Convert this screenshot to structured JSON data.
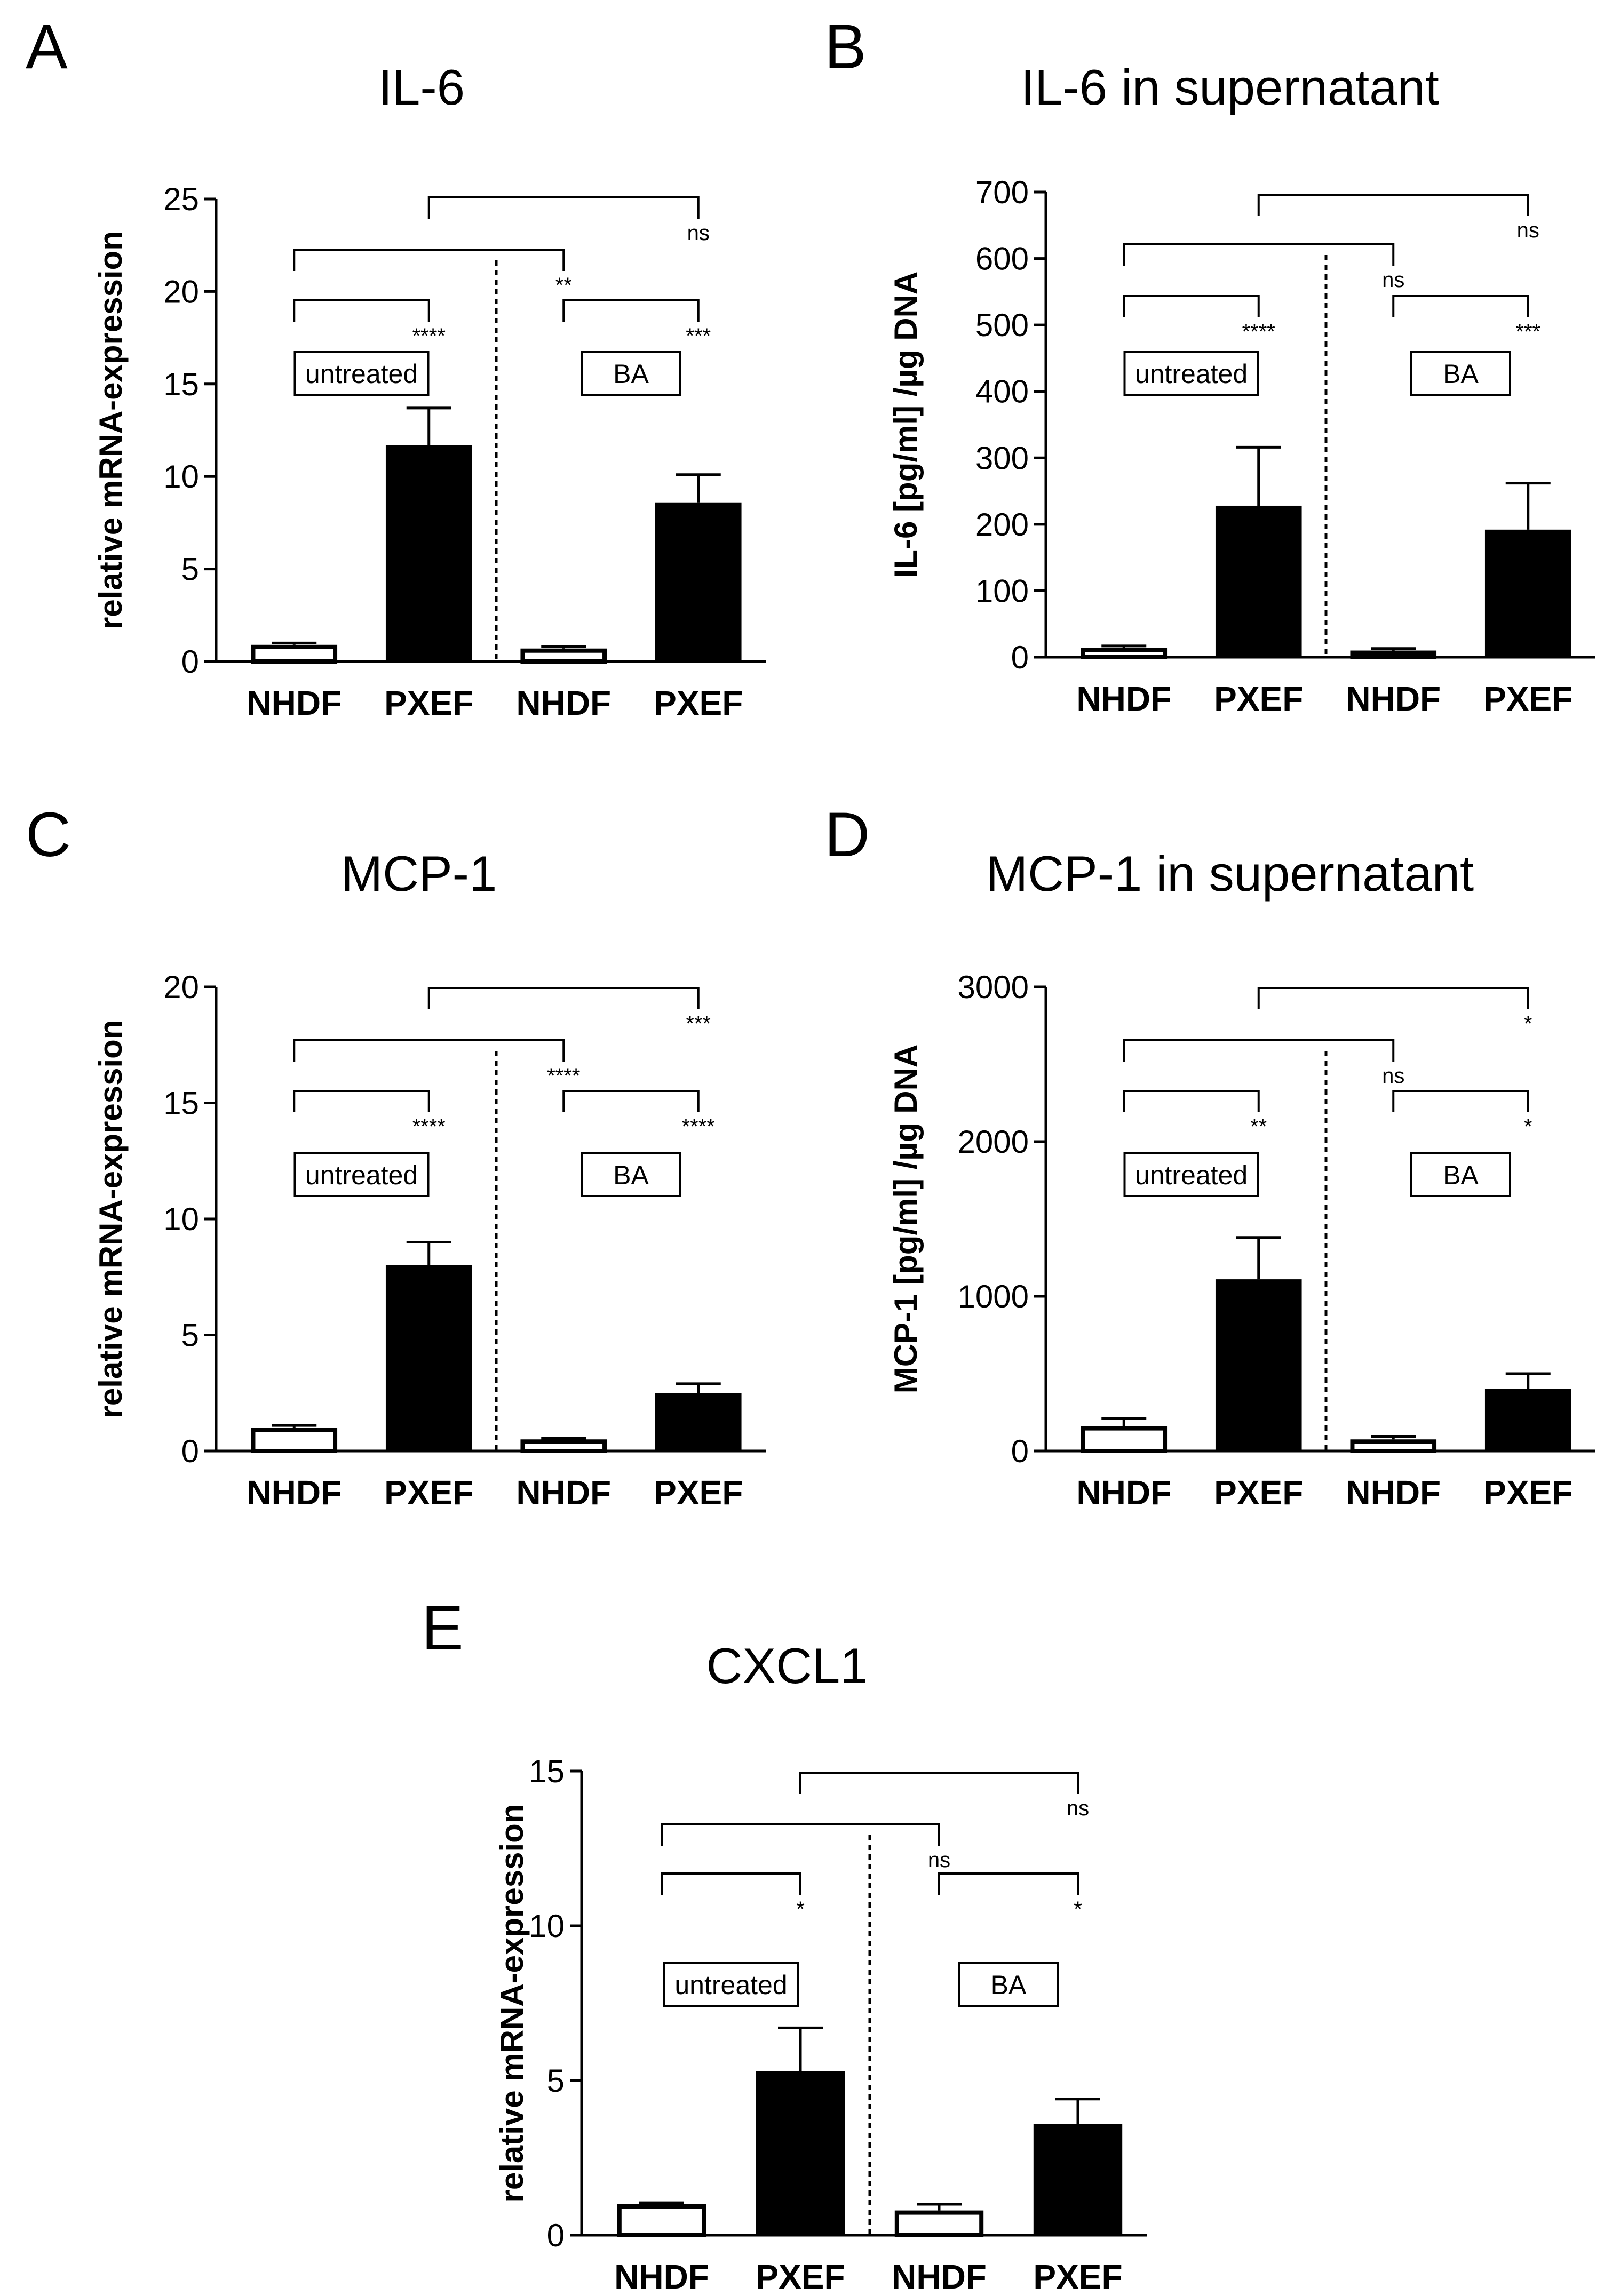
{
  "chart_data": [
    {
      "type": "bar",
      "panel": "A",
      "title": "IL-6",
      "xlabel": "",
      "ylabel": "relative mRNA-expression",
      "ylim": [
        0,
        25
      ],
      "yticks": [
        "0",
        "5",
        "10",
        "15",
        "20",
        "25"
      ],
      "categories": [
        "NHDF",
        "PXEF",
        "NHDF",
        "PXEF"
      ],
      "values": [
        0.9,
        11.7,
        0.7,
        8.6
      ],
      "errors": [
        0.1,
        2.0,
        0.1,
        1.5
      ],
      "groups": [
        "untreated",
        "BA"
      ],
      "significance": [
        {
          "from": 1,
          "to": 3,
          "label": "ns"
        },
        {
          "from": 0,
          "to": 2,
          "label": "**"
        },
        {
          "from": 0,
          "to": 1,
          "label": "****"
        },
        {
          "from": 2,
          "to": 3,
          "label": "***"
        }
      ]
    },
    {
      "type": "bar",
      "panel": "B",
      "title": "IL-6 in supernatant",
      "xlabel": "",
      "ylabel": "IL-6 [pg/ml] /µg DNA",
      "ylim": [
        0,
        700
      ],
      "yticks": [
        "0",
        "100",
        "200",
        "300",
        "400",
        "500",
        "600",
        "700"
      ],
      "categories": [
        "NHDF",
        "PXEF",
        "NHDF",
        "PXEF"
      ],
      "values": [
        14,
        228,
        10,
        192
      ],
      "errors": [
        3,
        88,
        3,
        70
      ],
      "groups": [
        "untreated",
        "BA"
      ],
      "significance": [
        {
          "from": 1,
          "to": 3,
          "label": "ns"
        },
        {
          "from": 0,
          "to": 2,
          "label": "ns"
        },
        {
          "from": 0,
          "to": 1,
          "label": "****"
        },
        {
          "from": 2,
          "to": 3,
          "label": "***"
        }
      ]
    },
    {
      "type": "bar",
      "panel": "C",
      "title": "MCP-1",
      "xlabel": "",
      "ylabel": "relative mRNA-expression",
      "ylim": [
        0,
        20
      ],
      "yticks": [
        "0",
        "5",
        "10",
        "15",
        "20"
      ],
      "categories": [
        "NHDF",
        "PXEF",
        "NHDF",
        "PXEF"
      ],
      "values": [
        1.0,
        8.0,
        0.5,
        2.5
      ],
      "errors": [
        0.1,
        1.0,
        0.05,
        0.4
      ],
      "groups": [
        "untreated",
        "BA"
      ],
      "significance": [
        {
          "from": 1,
          "to": 3,
          "label": "***"
        },
        {
          "from": 0,
          "to": 2,
          "label": "****"
        },
        {
          "from": 0,
          "to": 1,
          "label": "****"
        },
        {
          "from": 2,
          "to": 3,
          "label": "****"
        }
      ]
    },
    {
      "type": "bar",
      "panel": "D",
      "title": "MCP-1 in supernatant",
      "xlabel": "",
      "ylabel": "MCP-1 [pg/ml] /µg DNA",
      "ylim": [
        0,
        3000
      ],
      "yticks": [
        "0",
        "1000",
        "2000",
        "3000"
      ],
      "categories": [
        "NHDF",
        "PXEF",
        "NHDF",
        "PXEF"
      ],
      "values": [
        160,
        1110,
        75,
        400
      ],
      "errors": [
        50,
        270,
        20,
        100
      ],
      "groups": [
        "untreated",
        "BA"
      ],
      "significance": [
        {
          "from": 1,
          "to": 3,
          "label": "*"
        },
        {
          "from": 0,
          "to": 2,
          "label": "ns"
        },
        {
          "from": 0,
          "to": 1,
          "label": "**"
        },
        {
          "from": 2,
          "to": 3,
          "label": "*"
        }
      ]
    },
    {
      "type": "bar",
      "panel": "E",
      "title": "CXCL1",
      "xlabel": "",
      "ylabel": "relative mRNA-expression",
      "ylim": [
        0,
        15
      ],
      "yticks": [
        "0",
        "5",
        "10",
        "15"
      ],
      "categories": [
        "NHDF",
        "PXEF",
        "NHDF",
        "PXEF"
      ],
      "values": [
        1.0,
        5.3,
        0.8,
        3.6
      ],
      "errors": [
        0.05,
        1.4,
        0.2,
        0.8
      ],
      "groups": [
        "untreated",
        "BA"
      ],
      "significance": [
        {
          "from": 1,
          "to": 3,
          "label": "ns"
        },
        {
          "from": 0,
          "to": 2,
          "label": "ns"
        },
        {
          "from": 0,
          "to": 1,
          "label": "*"
        },
        {
          "from": 2,
          "to": 3,
          "label": "*"
        }
      ]
    }
  ]
}
